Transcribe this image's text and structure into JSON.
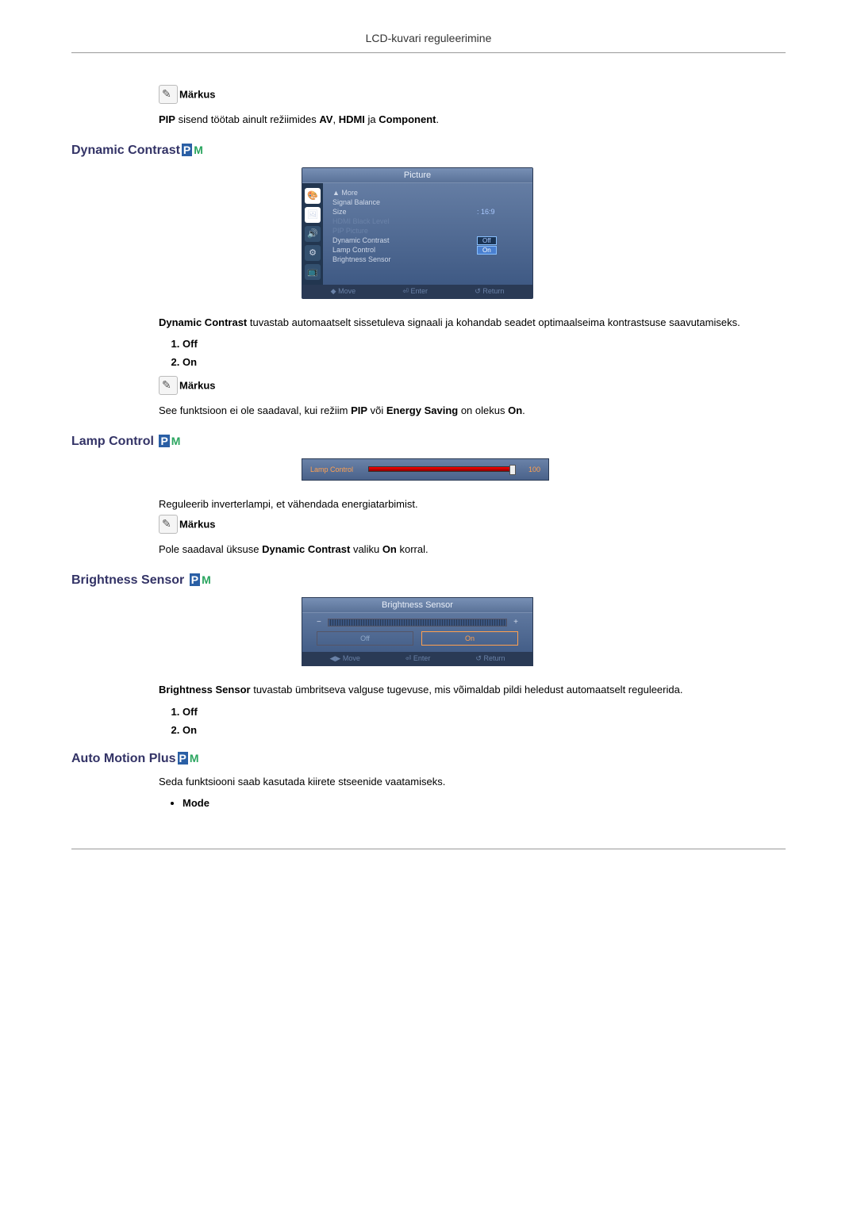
{
  "header": "LCD-kuvari reguleerimine",
  "note_label": "Märkus",
  "note1_text": {
    "prefix": "PIP",
    "mid": " sisend töötab ainult režiimides ",
    "bold": "AV",
    "mid2": ", ",
    "bold2": "HDMI",
    "mid3": " ja ",
    "bold3": "Component",
    "suffix": "."
  },
  "dyn": {
    "title": "Dynamic Contrast",
    "osd": {
      "title": "Picture",
      "rows": [
        {
          "label": "▲ More",
          "val": ""
        },
        {
          "label": "Signal Balance",
          "val": ""
        },
        {
          "label": "Size",
          "val": ": 16:9"
        },
        {
          "label": "HDMI Black Level",
          "val": "",
          "dim": true
        },
        {
          "label": "PIP Picture",
          "val": "",
          "dim": true
        },
        {
          "label": "Dynamic Contrast",
          "val": "Off",
          "hl": true
        },
        {
          "label": "Lamp Control",
          "val": "On",
          "sel": true
        },
        {
          "label": "Brightness Sensor",
          "val": ""
        }
      ],
      "footer": [
        "◆ Move",
        "⏎ Enter",
        "↺ Return"
      ]
    },
    "desc": {
      "bold": "Dynamic Contrast",
      "text": " tuvastab automaatselt sissetuleva signaali ja kohandab seadet optimaalseima kontrastsuse saavutamiseks."
    },
    "opts": [
      "Off",
      "On"
    ],
    "note": {
      "prefix": "See funktsioon ei ole saadaval, kui režiim ",
      "b1": "PIP",
      "mid": " või ",
      "b2": "Energy Saving",
      "mid2": " on olekus ",
      "b3": "On",
      "suffix": "."
    }
  },
  "lamp": {
    "title": "Lamp Control",
    "osd": {
      "label": "Lamp Control",
      "value": "100"
    },
    "desc": "Reguleerib inverterlampi, et vähendada energiatarbimist.",
    "note": {
      "prefix": "Pole saadaval üksuse ",
      "b1": "Dynamic Contrast",
      "mid": " valiku ",
      "b2": "On",
      "suffix": " korral."
    }
  },
  "bsensor": {
    "title": "Brightness Sensor",
    "osd": {
      "title": "Brightness Sensor",
      "minus": "−",
      "plus": "+",
      "off": "Off",
      "on": "On",
      "footer": [
        "◀▶ Move",
        "⏎ Enter",
        "↺ Return"
      ]
    },
    "desc": {
      "bold": "Brightness Sensor",
      "text": " tuvastab ümbritseva valguse tugevuse, mis võimaldab pildi heledust automaatselt reguleerida."
    },
    "opts": [
      "Off",
      "On"
    ]
  },
  "amp": {
    "title": "Auto Motion Plus",
    "desc": "Seda funktsiooni saab kasutada kiirete stseenide vaatamiseks.",
    "item": "Mode"
  }
}
